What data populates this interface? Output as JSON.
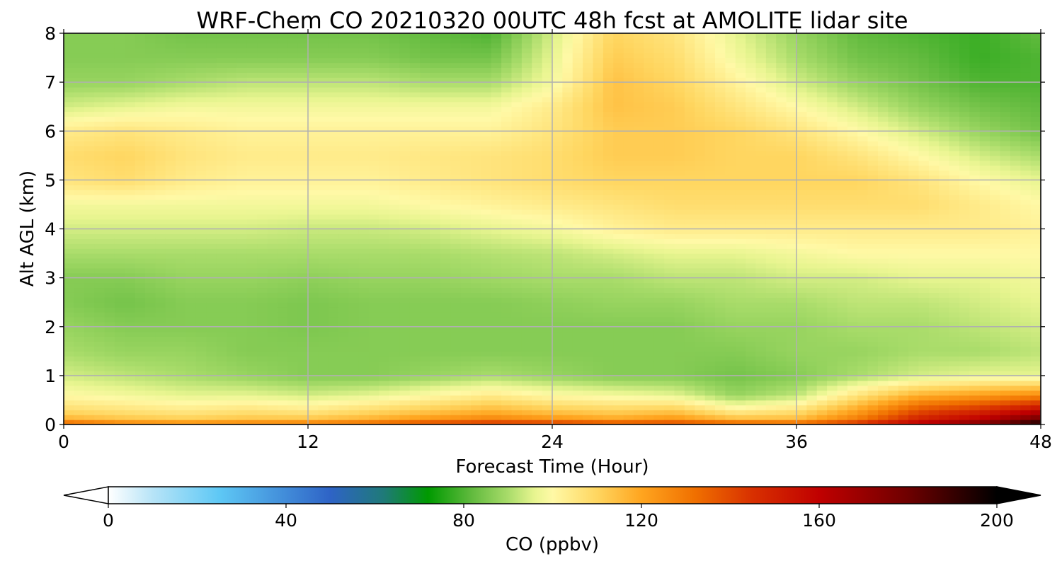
{
  "chart_data": {
    "type": "heatmap",
    "title": "WRF-Chem CO  20210320 00UTC 48h fcst at AMOLITE lidar site",
    "xlabel": "Forecast Time (Hour)",
    "ylabel": "Alt AGL (km)",
    "xlim": [
      0,
      48
    ],
    "ylim": [
      0,
      8
    ],
    "xticks": [
      0,
      12,
      24,
      36,
      48
    ],
    "yticks": [
      0,
      1,
      2,
      3,
      4,
      5,
      6,
      7,
      8
    ],
    "grid": true,
    "x_hours": [
      0,
      3,
      6,
      9,
      12,
      15,
      18,
      21,
      24,
      27,
      30,
      33,
      36,
      39,
      42,
      45,
      48
    ],
    "altitudes_km": [
      0,
      0.1,
      0.3,
      0.6,
      1,
      1.5,
      2,
      2.5,
      3,
      3.5,
      4,
      4.5,
      5,
      5.5,
      6,
      6.5,
      7,
      7.5,
      8
    ],
    "values_ppbv": [
      [
        140,
        132,
        130,
        132,
        134,
        138,
        146,
        150,
        150,
        146,
        146,
        142,
        140,
        150,
        166,
        180,
        200
      ],
      [
        118,
        114,
        112,
        114,
        114,
        118,
        124,
        128,
        124,
        120,
        124,
        116,
        116,
        130,
        150,
        162,
        182
      ],
      [
        108,
        106,
        104,
        106,
        104,
        108,
        112,
        116,
        112,
        110,
        112,
        102,
        106,
        120,
        138,
        146,
        158
      ],
      [
        100,
        98,
        96,
        96,
        94,
        96,
        100,
        104,
        100,
        98,
        96,
        88,
        92,
        106,
        118,
        122,
        126
      ],
      [
        94,
        92,
        90,
        88,
        86,
        86,
        88,
        90,
        88,
        86,
        86,
        84,
        86,
        90,
        94,
        96,
        96
      ],
      [
        90,
        88,
        88,
        86,
        86,
        86,
        86,
        86,
        86,
        86,
        86,
        86,
        88,
        88,
        90,
        90,
        92
      ],
      [
        88,
        86,
        86,
        86,
        85,
        86,
        86,
        86,
        86,
        86,
        86,
        88,
        88,
        90,
        90,
        92,
        94
      ],
      [
        86,
        84,
        86,
        86,
        85,
        86,
        86,
        86,
        87,
        88,
        88,
        90,
        90,
        92,
        92,
        94,
        96
      ],
      [
        86,
        86,
        88,
        88,
        87,
        88,
        88,
        89,
        90,
        90,
        92,
        92,
        94,
        94,
        96,
        96,
        98
      ],
      [
        90,
        90,
        90,
        90,
        90,
        90,
        90,
        91,
        92,
        94,
        96,
        96,
        98,
        100,
        100,
        100,
        100
      ],
      [
        94,
        94,
        94,
        94,
        93,
        93,
        94,
        96,
        98,
        102,
        104,
        104,
        104,
        104,
        104,
        104,
        102
      ],
      [
        98,
        98,
        98,
        98,
        98,
        98,
        100,
        102,
        104,
        106,
        108,
        108,
        108,
        108,
        108,
        104,
        100
      ],
      [
        106,
        108,
        104,
        102,
        102,
        102,
        104,
        106,
        108,
        110,
        110,
        110,
        110,
        110,
        106,
        100,
        96
      ],
      [
        108,
        110,
        106,
        104,
        104,
        104,
        105,
        106,
        108,
        112,
        112,
        110,
        110,
        106,
        100,
        94,
        90
      ],
      [
        104,
        106,
        104,
        102,
        102,
        102,
        102,
        102,
        106,
        112,
        112,
        110,
        106,
        100,
        94,
        88,
        84
      ],
      [
        94,
        96,
        98,
        98,
        98,
        98,
        98,
        98,
        104,
        114,
        112,
        106,
        100,
        94,
        88,
        84,
        82
      ],
      [
        88,
        88,
        90,
        92,
        92,
        92,
        90,
        90,
        98,
        114,
        110,
        102,
        94,
        88,
        84,
        80,
        80
      ],
      [
        86,
        86,
        86,
        86,
        86,
        86,
        84,
        84,
        96,
        112,
        108,
        98,
        90,
        84,
        82,
        78,
        80
      ],
      [
        86,
        86,
        84,
        84,
        84,
        84,
        82,
        80,
        94,
        110,
        106,
        96,
        88,
        82,
        80,
        78,
        82
      ]
    ],
    "colorbar": {
      "label": "CO  (ppbv)",
      "min": 0,
      "max": 200,
      "ticks": [
        0,
        40,
        80,
        120,
        160,
        200
      ],
      "extend": "both",
      "stops": [
        {
          "v": 0,
          "c": "#ffffff"
        },
        {
          "v": 10,
          "c": "#b7e4f7"
        },
        {
          "v": 25,
          "c": "#5ec8f5"
        },
        {
          "v": 50,
          "c": "#2e63c6"
        },
        {
          "v": 62,
          "c": "#1f7a78"
        },
        {
          "v": 72,
          "c": "#009a00"
        },
        {
          "v": 82,
          "c": "#63bb3f"
        },
        {
          "v": 90,
          "c": "#a9dc6a"
        },
        {
          "v": 96,
          "c": "#e8f590"
        },
        {
          "v": 100,
          "c": "#fff9a6"
        },
        {
          "v": 110,
          "c": "#ffd660"
        },
        {
          "v": 120,
          "c": "#ffa51f"
        },
        {
          "v": 132,
          "c": "#f07000"
        },
        {
          "v": 145,
          "c": "#d83000"
        },
        {
          "v": 160,
          "c": "#c00000"
        },
        {
          "v": 180,
          "c": "#6e0000"
        },
        {
          "v": 200,
          "c": "#000000"
        }
      ]
    }
  }
}
